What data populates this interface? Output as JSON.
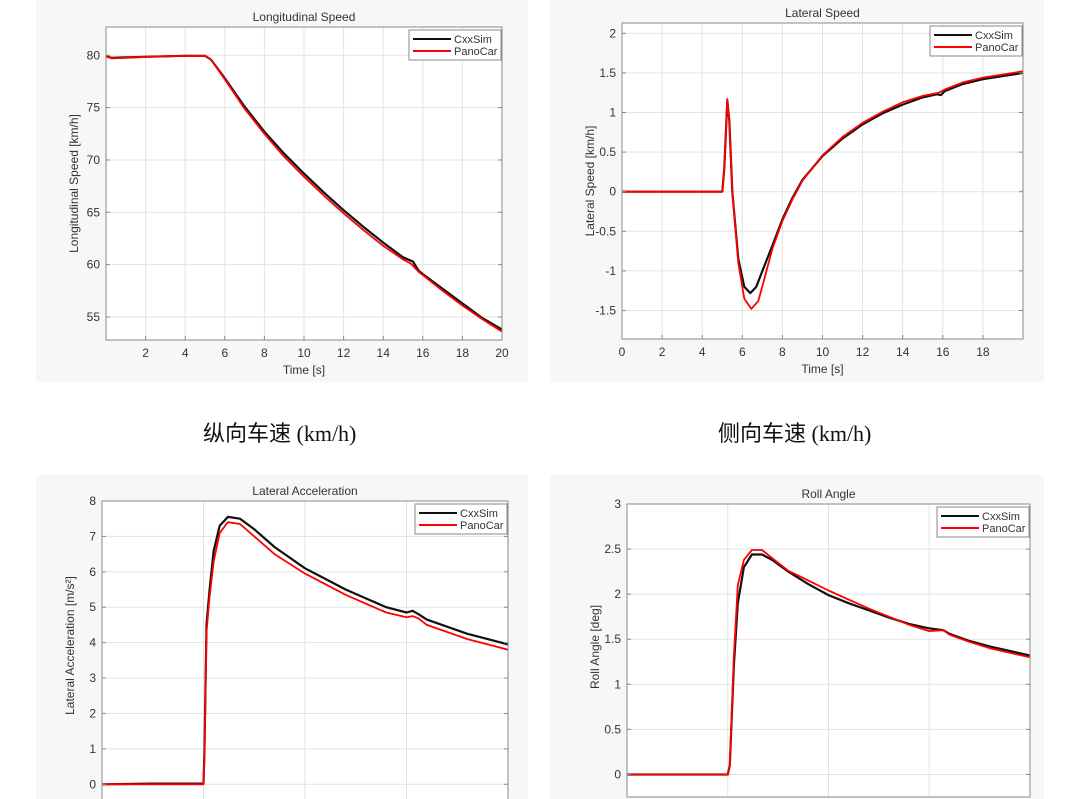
{
  "colors": {
    "panel_bg": "#f7f7f7",
    "plot_bg": "#ffffff",
    "grid": "#e3e3e3",
    "axis": "#8a8a8a",
    "cxxsim": "#111111",
    "panocar": "#ff0000"
  },
  "captions": [
    {
      "text": "纵向车速 (km/h)"
    },
    {
      "text": "侧向车速 (km/h)"
    }
  ],
  "legend": [
    {
      "label": "CxxSim",
      "color": "#111111"
    },
    {
      "label": "PanoCar",
      "color": "#ff0000"
    }
  ],
  "chart_data": [
    {
      "type": "line",
      "title": "Longitudinal Speed",
      "xlabel": "Time [s]",
      "ylabel": "Longitudinal Speed [km/h]",
      "xlim": [
        0,
        20
      ],
      "ylim": [
        52.8,
        82.7
      ],
      "xticks": [
        2,
        4,
        6,
        8,
        10,
        12,
        14,
        16,
        18,
        20
      ],
      "yticks": [
        55,
        60,
        65,
        70,
        75,
        80
      ],
      "grid": true,
      "legend_position": "top-right",
      "series": [
        {
          "name": "CxxSim",
          "x": [
            0,
            0.3,
            1,
            2,
            3,
            4,
            5,
            5.3,
            6,
            7,
            8,
            9,
            10,
            11,
            12,
            13,
            14,
            15,
            15.5,
            15.8,
            16,
            17,
            18,
            19,
            20
          ],
          "y": [
            79.9,
            79.75,
            79.8,
            79.85,
            79.9,
            79.95,
            79.95,
            79.6,
            77.8,
            75.1,
            72.7,
            70.6,
            68.7,
            66.9,
            65.2,
            63.6,
            62.1,
            60.7,
            60.3,
            59.4,
            59.1,
            57.7,
            56.3,
            54.9,
            53.8
          ]
        },
        {
          "name": "PanoCar",
          "x": [
            0,
            0.3,
            1,
            2,
            3,
            4,
            5,
            5.3,
            6,
            7,
            8,
            9,
            10,
            11,
            12,
            13,
            14,
            15,
            15.4,
            15.8,
            16,
            17,
            18,
            19,
            20
          ],
          "y": [
            79.9,
            79.7,
            79.75,
            79.85,
            79.9,
            79.95,
            79.95,
            79.6,
            77.7,
            74.9,
            72.5,
            70.3,
            68.4,
            66.6,
            64.9,
            63.3,
            61.8,
            60.5,
            60.1,
            59.3,
            59.0,
            57.5,
            56.1,
            54.8,
            53.6
          ]
        }
      ]
    },
    {
      "type": "line",
      "title": "Lateral Speed",
      "xlabel": "Time [s]",
      "ylabel": "Lateral Speed [km/h]",
      "xlim": [
        0,
        20
      ],
      "ylim": [
        -1.86,
        2.13
      ],
      "xticks": [
        0,
        2,
        4,
        6,
        8,
        10,
        12,
        14,
        16,
        18
      ],
      "yticks": [
        -1.5,
        -1,
        -0.5,
        0,
        0.5,
        1,
        1.5,
        2
      ],
      "grid": true,
      "legend_position": "top-right",
      "series": [
        {
          "name": "CxxSim",
          "x": [
            0,
            5.0,
            5.1,
            5.25,
            5.35,
            5.5,
            5.8,
            6.1,
            6.4,
            6.7,
            7.0,
            7.5,
            8,
            8.5,
            9,
            10,
            11,
            12,
            13,
            14,
            15,
            15.7,
            15.9,
            16.1,
            17,
            18,
            19,
            20
          ],
          "y": [
            0,
            0,
            0.3,
            1.15,
            0.9,
            0.0,
            -0.85,
            -1.2,
            -1.28,
            -1.2,
            -1.0,
            -0.68,
            -0.35,
            -0.08,
            0.15,
            0.45,
            0.67,
            0.85,
            0.99,
            1.1,
            1.19,
            1.23,
            1.22,
            1.27,
            1.36,
            1.42,
            1.46,
            1.5
          ]
        },
        {
          "name": "PanoCar",
          "x": [
            0,
            5.0,
            5.1,
            5.25,
            5.35,
            5.5,
            5.8,
            6.1,
            6.45,
            6.8,
            7.1,
            7.5,
            8,
            8.5,
            9,
            10,
            11,
            12,
            13,
            14,
            15,
            15.6,
            15.8,
            16.1,
            17,
            18,
            19,
            20
          ],
          "y": [
            0,
            0,
            0.3,
            1.17,
            0.9,
            0.0,
            -0.9,
            -1.35,
            -1.48,
            -1.38,
            -1.1,
            -0.72,
            -0.37,
            -0.1,
            0.14,
            0.46,
            0.69,
            0.87,
            1.01,
            1.13,
            1.21,
            1.24,
            1.25,
            1.29,
            1.38,
            1.44,
            1.48,
            1.52
          ]
        }
      ]
    },
    {
      "type": "line",
      "title": "Lateral Acceleration",
      "xlabel": "",
      "ylabel": "Lateral Acceleration [m/s²]",
      "xlim": [
        0,
        20
      ],
      "ylim": [
        -0.5,
        8
      ],
      "xticks": [],
      "vgrid_at": [
        5,
        10,
        15,
        20
      ],
      "yticks": [
        0,
        1,
        2,
        3,
        4,
        5,
        6,
        7,
        8
      ],
      "grid": true,
      "legend_position": "top-right",
      "series": [
        {
          "name": "CxxSim",
          "x": [
            0,
            2.5,
            5.0,
            5.05,
            5.15,
            5.3,
            5.5,
            5.8,
            6.2,
            6.8,
            7.5,
            8.5,
            10,
            11,
            12,
            13,
            14,
            15,
            15.3,
            15.6,
            16,
            17,
            18,
            19,
            20
          ],
          "y": [
            0,
            0.02,
            0.02,
            1.0,
            4.5,
            5.5,
            6.6,
            7.3,
            7.55,
            7.5,
            7.2,
            6.7,
            6.1,
            5.8,
            5.5,
            5.25,
            5.0,
            4.85,
            4.9,
            4.8,
            4.65,
            4.45,
            4.25,
            4.1,
            3.95
          ]
        },
        {
          "name": "PanoCar",
          "x": [
            0,
            2.5,
            5.0,
            5.05,
            5.15,
            5.3,
            5.5,
            5.8,
            6.2,
            6.8,
            7.5,
            8.5,
            10,
            11,
            12,
            13,
            14,
            15,
            15.3,
            15.6,
            16,
            17,
            18,
            19,
            20
          ],
          "y": [
            0,
            0.0,
            0.0,
            0.9,
            4.3,
            5.3,
            6.3,
            7.1,
            7.4,
            7.35,
            7.0,
            6.5,
            5.95,
            5.65,
            5.35,
            5.1,
            4.85,
            4.72,
            4.75,
            4.68,
            4.5,
            4.3,
            4.1,
            3.95,
            3.8
          ]
        }
      ]
    },
    {
      "type": "line",
      "title": "Roll Angle",
      "xlabel": "",
      "ylabel": "Roll Angle [deg]",
      "xlim": [
        0,
        20
      ],
      "ylim": [
        -0.25,
        3
      ],
      "xticks": [],
      "vgrid_at": [
        5,
        10,
        15,
        20
      ],
      "yticks": [
        0,
        0.5,
        1,
        1.5,
        2,
        2.5,
        3
      ],
      "grid": true,
      "legend_position": "top-right",
      "series": [
        {
          "name": "CxxSim",
          "x": [
            0,
            5.0,
            5.1,
            5.3,
            5.5,
            5.8,
            6.2,
            6.7,
            7.2,
            8,
            9,
            10,
            11,
            12,
            13,
            14,
            15,
            15.7,
            16,
            17,
            18,
            19,
            20
          ],
          "y": [
            0,
            0,
            0.1,
            1.2,
            1.9,
            2.3,
            2.44,
            2.44,
            2.38,
            2.25,
            2.11,
            1.99,
            1.9,
            1.82,
            1.74,
            1.67,
            1.62,
            1.6,
            1.56,
            1.48,
            1.42,
            1.37,
            1.32
          ]
        },
        {
          "name": "PanoCar",
          "x": [
            0,
            5.0,
            5.1,
            5.3,
            5.5,
            5.8,
            6.2,
            6.7,
            7.2,
            8,
            9,
            10,
            11,
            12,
            13,
            14,
            15,
            15.7,
            16,
            17,
            18,
            19,
            20
          ],
          "y": [
            0,
            0,
            0.1,
            1.3,
            2.1,
            2.38,
            2.49,
            2.49,
            2.4,
            2.26,
            2.15,
            2.04,
            1.94,
            1.84,
            1.75,
            1.66,
            1.59,
            1.6,
            1.55,
            1.47,
            1.4,
            1.35,
            1.3
          ]
        }
      ]
    }
  ]
}
